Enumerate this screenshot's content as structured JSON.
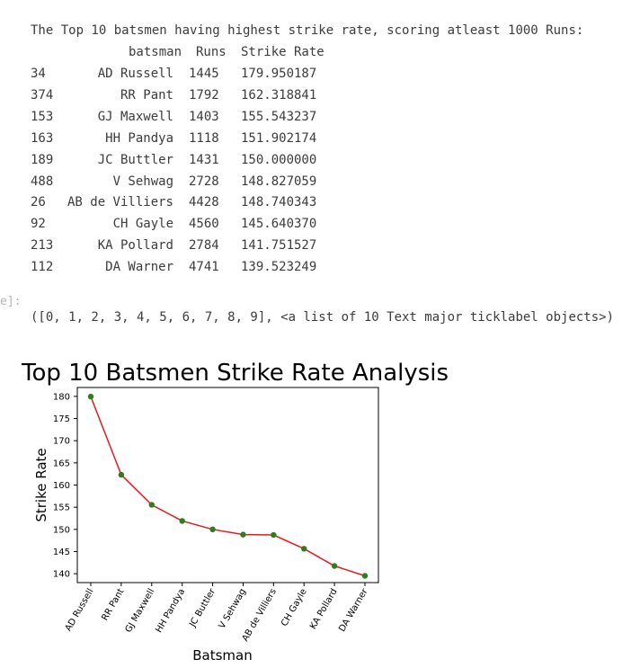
{
  "output": {
    "heading": "The Top 10 batsmen having highest strike rate, scoring atleast 1000 Runs:",
    "columns": [
      "batsman",
      "Runs",
      "Strike Rate"
    ],
    "rows": [
      {
        "index": "34",
        "batsman": "AD Russell",
        "runs": "1445",
        "sr": "179.950187"
      },
      {
        "index": "374",
        "batsman": "RR Pant",
        "runs": "1792",
        "sr": "162.318841"
      },
      {
        "index": "153",
        "batsman": "GJ Maxwell",
        "runs": "1403",
        "sr": "155.543237"
      },
      {
        "index": "163",
        "batsman": "HH Pandya",
        "runs": "1118",
        "sr": "151.902174"
      },
      {
        "index": "189",
        "batsman": "JC Buttler",
        "runs": "1431",
        "sr": "150.000000"
      },
      {
        "index": "488",
        "batsman": "V Sehwag",
        "runs": "2728",
        "sr": "148.827059"
      },
      {
        "index": "26",
        "batsman": "AB de Villiers",
        "runs": "4428",
        "sr": "148.740343"
      },
      {
        "index": "92",
        "batsman": "CH Gayle",
        "runs": "4560",
        "sr": "145.640370"
      },
      {
        "index": "213",
        "batsman": "KA Pollard",
        "runs": "2784",
        "sr": "141.751527"
      },
      {
        "index": "112",
        "batsman": "DA Warner",
        "runs": "4741",
        "sr": "139.523249"
      }
    ],
    "prompt_fragment": "e]:",
    "result_text": "([0, 1, 2, 3, 4, 5, 6, 7, 8, 9], <a list of 10 Text major ticklabel objects>)"
  },
  "chart_data": {
    "type": "line",
    "title": "Top 10 Batsmen Strike Rate Analysis",
    "xlabel": "Batsman",
    "ylabel": "Strike Rate",
    "categories": [
      "AD Russell",
      "RR Pant",
      "GJ Maxwell",
      "HH Pandya",
      "JC Buttler",
      "V Sehwag",
      "AB de Villiers",
      "CH Gayle",
      "KA Pollard",
      "DA Warner"
    ],
    "values": [
      179.950187,
      162.318841,
      155.543237,
      151.902174,
      150.0,
      148.827059,
      148.740343,
      145.64037,
      141.751527,
      139.523249
    ],
    "ylim": [
      138.0,
      182.0
    ],
    "yticks": [
      140,
      145,
      150,
      155,
      160,
      165,
      170,
      175,
      180
    ],
    "grid": false,
    "line_color": "#e41a1c",
    "marker_color": "#2e7d1e"
  }
}
